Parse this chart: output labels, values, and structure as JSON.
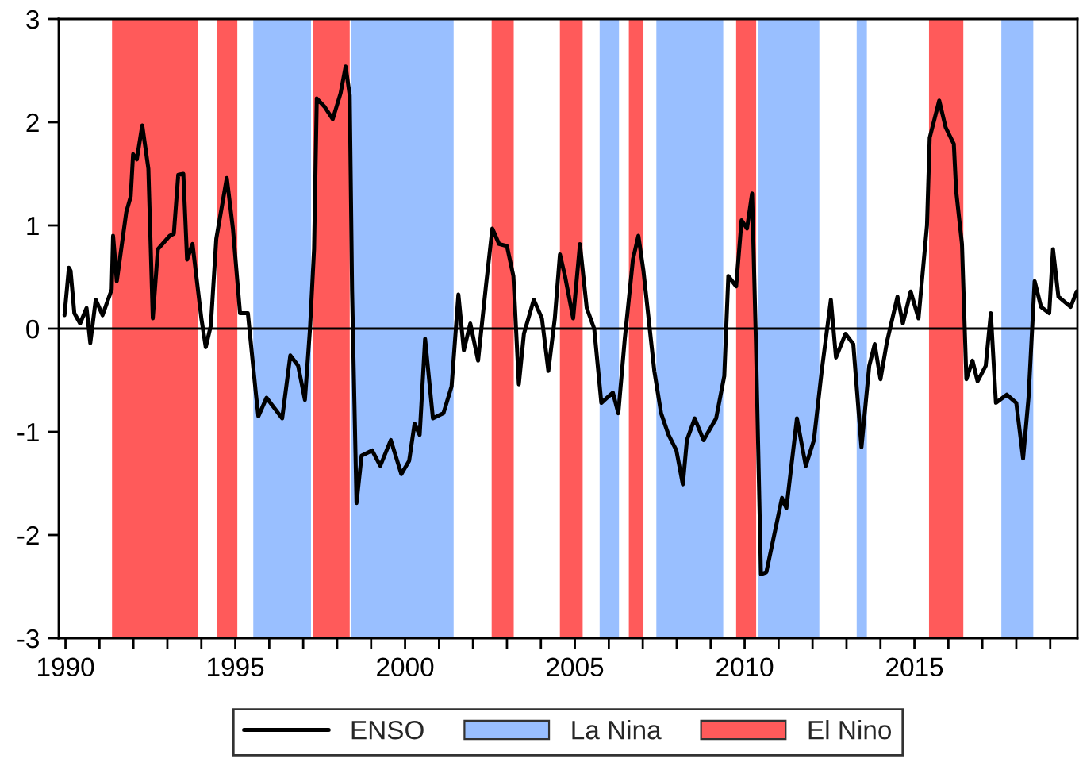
{
  "chart_data": {
    "type": "line",
    "xlim": [
      1989.8,
      2019.8
    ],
    "ylim": [
      -3,
      3
    ],
    "yticks": [
      -3,
      -2,
      -1,
      0,
      1,
      2,
      3
    ],
    "xticks": [
      1990,
      {
        "value": 1991,
        "label": null
      },
      {
        "value": 1992,
        "label": null
      },
      {
        "value": 1993,
        "label": null
      },
      {
        "value": 1994,
        "label": null
      },
      1995,
      {
        "value": 1996,
        "label": null
      },
      {
        "value": 1997,
        "label": null
      },
      {
        "value": 1998,
        "label": null
      },
      {
        "value": 1999,
        "label": null
      },
      2000,
      {
        "value": 2001,
        "label": null
      },
      {
        "value": 2002,
        "label": null
      },
      {
        "value": 2003,
        "label": null
      },
      {
        "value": 2004,
        "label": null
      },
      2005,
      {
        "value": 2006,
        "label": null
      },
      {
        "value": 2007,
        "label": null
      },
      {
        "value": 2008,
        "label": null
      },
      {
        "value": 2009,
        "label": null
      },
      2010,
      {
        "value": 2011,
        "label": null
      },
      {
        "value": 2012,
        "label": null
      },
      {
        "value": 2013,
        "label": null
      },
      {
        "value": 2014,
        "label": null
      },
      2015,
      {
        "value": 2016,
        "label": null
      },
      {
        "value": 2017,
        "label": null
      },
      {
        "value": 2018,
        "label": null
      },
      {
        "value": 2019,
        "label": null
      }
    ],
    "grid": false,
    "legend": "bottom",
    "line_style": "solid",
    "marker": "none",
    "series": [
      {
        "name": "ENSO",
        "color": "#000000",
        "x": [
          1989.97,
          1990.1,
          1990.15,
          1990.26,
          1990.43,
          1990.62,
          1990.73,
          1990.89,
          1991.09,
          1991.36,
          1991.4,
          1991.51,
          1991.64,
          1991.79,
          1991.92,
          1991.99,
          1992.1,
          1992.26,
          1992.44,
          1992.57,
          1992.72,
          1993.07,
          1993.19,
          1993.32,
          1993.47,
          1993.58,
          1993.74,
          1994.0,
          1994.13,
          1994.28,
          1994.44,
          1994.75,
          1994.93,
          1995.14,
          1995.37,
          1995.61,
          1995.68,
          1995.92,
          1996.15,
          1996.38,
          1996.62,
          1996.85,
          1997.05,
          1997.2,
          1997.32,
          1997.4,
          1997.63,
          1997.87,
          1998.1,
          1998.25,
          1998.37,
          1998.44,
          1998.57,
          1998.72,
          1999.03,
          1999.27,
          1999.58,
          1999.89,
          2000.12,
          2000.28,
          2000.43,
          2000.59,
          2000.82,
          2001.13,
          2001.37,
          2001.57,
          2001.73,
          2001.92,
          2002.15,
          2002.38,
          2002.57,
          2002.77,
          2003.0,
          2003.19,
          2003.35,
          2003.5,
          2003.79,
          2004.03,
          2004.22,
          2004.41,
          2004.56,
          2004.71,
          2004.95,
          2005.15,
          2005.35,
          2005.57,
          2005.78,
          2006.12,
          2006.28,
          2006.47,
          2006.71,
          2006.87,
          2007.02,
          2007.34,
          2007.54,
          2007.76,
          2007.99,
          2008.18,
          2008.3,
          2008.53,
          2008.79,
          2009.16,
          2009.4,
          2009.52,
          2009.75,
          2009.91,
          2010.07,
          2010.22,
          2010.33,
          2010.48,
          2010.64,
          2010.87,
          2011.1,
          2011.23,
          2011.54,
          2011.8,
          2012.04,
          2012.27,
          2012.54,
          2012.69,
          2012.97,
          2013.2,
          2013.44,
          2013.67,
          2013.83,
          2014.0,
          2014.19,
          2014.5,
          2014.66,
          2014.89,
          2015.12,
          2015.37,
          2015.45,
          2015.73,
          2015.92,
          2016.16,
          2016.23,
          2016.4,
          2016.53,
          2016.71,
          2016.86,
          2017.1,
          2017.25,
          2017.4,
          2017.72,
          2018.0,
          2018.2,
          2018.36,
          2018.54,
          2018.73,
          2018.97,
          2019.08,
          2019.24,
          2019.6,
          2019.78
        ],
        "values": [
          0.13,
          0.59,
          0.56,
          0.15,
          0.05,
          0.2,
          -0.14,
          0.28,
          0.13,
          0.38,
          0.9,
          0.46,
          0.77,
          1.13,
          1.28,
          1.69,
          1.64,
          1.97,
          1.55,
          0.1,
          0.77,
          0.9,
          0.92,
          1.49,
          1.5,
          0.67,
          0.82,
          0.1,
          -0.18,
          0.03,
          0.87,
          1.46,
          0.97,
          0.15,
          0.15,
          -0.64,
          -0.85,
          -0.67,
          -0.77,
          -0.87,
          -0.26,
          -0.36,
          -0.69,
          0.0,
          0.77,
          2.23,
          2.15,
          2.03,
          2.28,
          2.54,
          2.26,
          0.36,
          -1.69,
          -1.23,
          -1.18,
          -1.33,
          -1.08,
          -1.41,
          -1.28,
          -0.92,
          -1.03,
          -0.1,
          -0.87,
          -0.82,
          -0.56,
          0.33,
          -0.21,
          0.05,
          -0.31,
          0.41,
          0.97,
          0.82,
          0.8,
          0.51,
          -0.54,
          -0.05,
          0.28,
          0.1,
          -0.41,
          0.1,
          0.72,
          0.51,
          0.1,
          0.82,
          0.2,
          0.0,
          -0.72,
          -0.62,
          -0.82,
          -0.1,
          0.67,
          0.9,
          0.56,
          -0.41,
          -0.82,
          -1.03,
          -1.18,
          -1.51,
          -1.08,
          -0.87,
          -1.08,
          -0.87,
          -0.46,
          0.51,
          0.41,
          1.05,
          0.97,
          1.31,
          -0.1,
          -2.38,
          -2.36,
          -2.0,
          -1.64,
          -1.74,
          -0.87,
          -1.33,
          -1.08,
          -0.41,
          0.28,
          -0.28,
          -0.05,
          -0.15,
          -1.15,
          -0.36,
          -0.15,
          -0.49,
          -0.13,
          0.31,
          0.05,
          0.36,
          0.1,
          1.0,
          1.85,
          2.21,
          1.95,
          1.79,
          1.33,
          0.82,
          -0.49,
          -0.31,
          -0.51,
          -0.36,
          0.15,
          -0.72,
          -0.64,
          -0.72,
          -1.26,
          -0.67,
          0.46,
          0.21,
          0.15,
          0.77,
          0.31,
          0.21,
          0.36
        ]
      }
    ],
    "ref_lines": [
      {
        "axis": "y",
        "value": 0,
        "color": "#000000"
      }
    ],
    "bands": [
      {
        "axis": "x",
        "from": 1995.53,
        "to": 1997.23,
        "label": "La Nina",
        "color": "#99bfff"
      },
      {
        "axis": "x",
        "from": 1991.37,
        "to": 1993.9,
        "label": "El Nino",
        "color": "#ff5a5a"
      },
      {
        "axis": "x",
        "from": 1994.47,
        "to": 1995.06,
        "color": "#ff5a5a"
      },
      {
        "axis": "x",
        "from": 1997.3,
        "to": 1998.37,
        "color": "#ff5a5a"
      },
      {
        "axis": "x",
        "from": 1998.4,
        "to": 2001.43,
        "color": "#99bfff"
      },
      {
        "axis": "x",
        "from": 2002.55,
        "to": 2003.2,
        "color": "#ff5a5a"
      },
      {
        "axis": "x",
        "from": 2004.56,
        "to": 2005.23,
        "color": "#ff5a5a"
      },
      {
        "axis": "x",
        "from": 2005.73,
        "to": 2006.3,
        "color": "#99bfff"
      },
      {
        "axis": "x",
        "from": 2006.59,
        "to": 2007.02,
        "color": "#ff5a5a"
      },
      {
        "axis": "x",
        "from": 2007.4,
        "to": 2009.37,
        "color": "#99bfff"
      },
      {
        "axis": "x",
        "from": 2009.75,
        "to": 2010.34,
        "color": "#ff5a5a"
      },
      {
        "axis": "x",
        "from": 2010.4,
        "to": 2012.2,
        "color": "#99bfff"
      },
      {
        "axis": "x",
        "from": 2013.3,
        "to": 2013.6,
        "color": "#99bfff"
      },
      {
        "axis": "x",
        "from": 2015.43,
        "to": 2016.44,
        "color": "#ff5a5a"
      },
      {
        "axis": "x",
        "from": 2017.56,
        "to": 2018.5,
        "color": "#99bfff"
      }
    ]
  }
}
